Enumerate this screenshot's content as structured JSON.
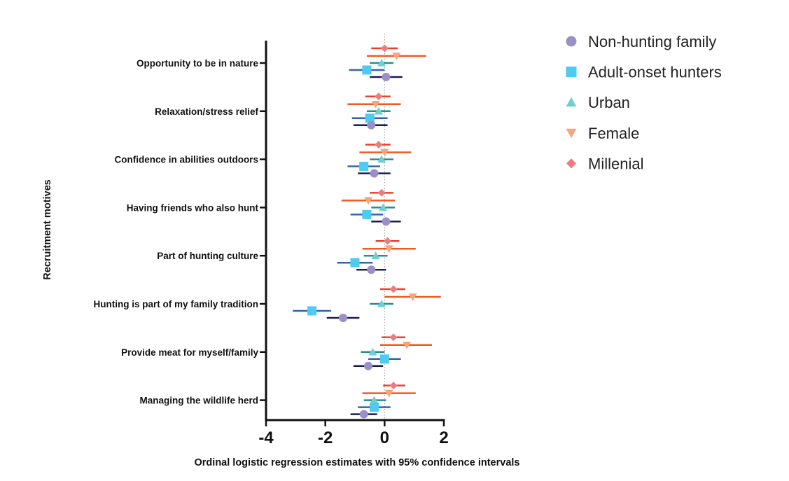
{
  "chart_data": {
    "type": "forest",
    "title": "",
    "xlabel": "Ordinal logistic regression estimates with 95% confidence intervals",
    "ylabel": "Recruitment motives",
    "xlim": [
      -4,
      2
    ],
    "x_ticks": [
      -4,
      -2,
      0,
      2
    ],
    "x_tick_labels": [
      "-4",
      "-2",
      "0",
      "2"
    ],
    "reference_line": 0,
    "grid": false,
    "legend_position": "top-right",
    "categories": [
      "Opportunity to be in nature",
      "Relaxation/stress relief",
      "Confidence in abilities outdoors",
      "Having friends who also hunt",
      "Part of hunting culture",
      "Hunting is part of my family tradition",
      "Provide meat for myself/family",
      "Managing the wildlife herd"
    ],
    "series": [
      {
        "name": "Millenial",
        "marker": "diamond",
        "marker_color": "#ee7b80",
        "line_color": "#e8432d",
        "estimates": [
          0.0,
          -0.2,
          -0.2,
          -0.1,
          0.1,
          0.3,
          0.3,
          0.3
        ],
        "lower": [
          -0.45,
          -0.65,
          -0.65,
          -0.5,
          -0.3,
          -0.15,
          -0.1,
          -0.05
        ],
        "upper": [
          0.45,
          0.2,
          0.2,
          0.3,
          0.5,
          0.7,
          0.7,
          0.7
        ]
      },
      {
        "name": "Female",
        "marker": "triangle-down",
        "marker_color": "#f8a57a",
        "line_color": "#ef5a26",
        "estimates": [
          0.4,
          -0.3,
          0.0,
          -0.55,
          0.15,
          0.95,
          0.75,
          0.15
        ],
        "lower": [
          -0.6,
          -1.25,
          -0.85,
          -1.45,
          -0.75,
          0.0,
          -0.15,
          -0.75
        ],
        "upper": [
          1.4,
          0.55,
          0.9,
          0.35,
          1.05,
          1.9,
          1.6,
          1.05
        ]
      },
      {
        "name": "Urban",
        "marker": "triangle-up",
        "marker_color": "#6fd0cf",
        "line_color": "#2a8d8b",
        "estimates": [
          -0.1,
          -0.2,
          -0.1,
          -0.05,
          -0.3,
          -0.1,
          -0.4,
          -0.35
        ],
        "lower": [
          -0.5,
          -0.6,
          -0.5,
          -0.45,
          -0.7,
          -0.5,
          -0.8,
          -0.7
        ],
        "upper": [
          0.3,
          0.2,
          0.3,
          0.35,
          0.1,
          0.3,
          0.0,
          0.05
        ]
      },
      {
        "name": "Adult-onset hunters",
        "marker": "square",
        "marker_color": "#4ecbf0",
        "line_color": "#2f64b6",
        "estimates": [
          -0.6,
          -0.5,
          -0.7,
          -0.6,
          -1.0,
          -2.45,
          0.0,
          -0.35
        ],
        "lower": [
          -1.2,
          -1.1,
          -1.25,
          -1.15,
          -1.6,
          -3.1,
          -0.55,
          -0.9
        ],
        "upper": [
          0.0,
          0.1,
          -0.15,
          -0.05,
          -0.4,
          -1.8,
          0.55,
          0.2
        ]
      },
      {
        "name": "Non-hunting family",
        "marker": "circle",
        "marker_color": "#9b8fc9",
        "line_color": "#1a1c54",
        "estimates": [
          0.05,
          -0.45,
          -0.35,
          0.05,
          -0.45,
          -1.4,
          -0.55,
          -0.7
        ],
        "lower": [
          -0.5,
          -1.05,
          -0.9,
          -0.45,
          -0.95,
          -1.95,
          -1.05,
          -1.15
        ],
        "upper": [
          0.6,
          0.1,
          0.2,
          0.55,
          0.05,
          -0.85,
          -0.05,
          -0.25
        ]
      }
    ],
    "legend": [
      {
        "label": "Non-hunting family",
        "marker": "circle",
        "color": "#9b8fc9"
      },
      {
        "label": "Adult-onset hunters",
        "marker": "square",
        "color": "#4ecbf0"
      },
      {
        "label": "Urban",
        "marker": "triangle-up",
        "color": "#6fd0cf"
      },
      {
        "label": "Female",
        "marker": "triangle-down",
        "color": "#f8a57a"
      },
      {
        "label": "Millenial",
        "marker": "diamond",
        "color": "#ee7b80"
      }
    ]
  }
}
